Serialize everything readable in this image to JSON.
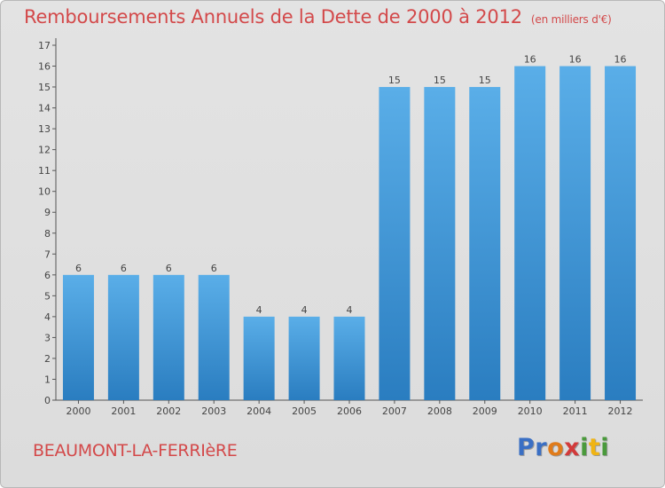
{
  "title": "Remboursements Annuels de la Dette de 2000 à 2012",
  "unit_note": "(en milliers d'€)",
  "commune": "BEAUMONT-LA-FERRIèRE",
  "logo": {
    "parts": [
      "Pr",
      "o",
      "x",
      "i",
      "t",
      "i"
    ]
  },
  "colors": {
    "title": "#d3494a",
    "bar_top": "#5aaee8",
    "bar_bottom": "#2a7dc0",
    "background": "#dedede"
  },
  "chart_data": {
    "type": "bar",
    "title": "Remboursements Annuels de la Dette de 2000 à 2012",
    "categories": [
      "2000",
      "2001",
      "2002",
      "2003",
      "2004",
      "2005",
      "2006",
      "2007",
      "2008",
      "2009",
      "2010",
      "2011",
      "2012"
    ],
    "values": [
      6,
      6,
      6,
      6,
      4,
      4,
      4,
      15,
      15,
      15,
      16,
      16,
      16
    ],
    "ylim": [
      0,
      17
    ],
    "yticks": [
      0,
      1,
      2,
      3,
      4,
      5,
      6,
      7,
      8,
      9,
      10,
      11,
      12,
      13,
      14,
      15,
      16,
      17
    ],
    "grid": false,
    "xlabel": "",
    "ylabel": ""
  }
}
